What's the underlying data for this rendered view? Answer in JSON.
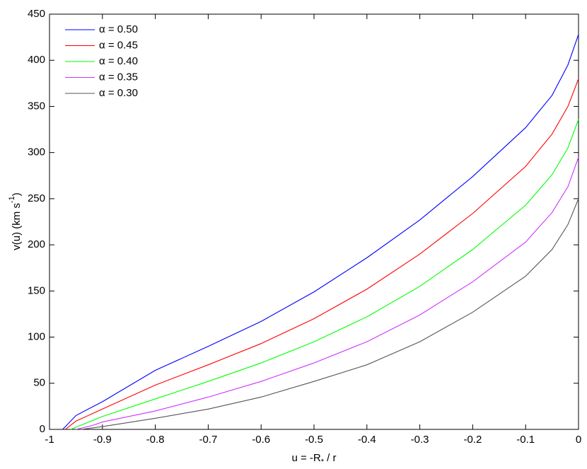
{
  "chart_data": {
    "type": "line",
    "xlabel_parts": [
      "u = -R",
      "*",
      " / r"
    ],
    "ylabel_parts": [
      "v(u) (km s",
      "-1",
      ")"
    ],
    "xlim": [
      -1,
      0
    ],
    "xticks": [
      -1,
      -0.9,
      -0.8,
      -0.7,
      -0.6,
      -0.5,
      -0.4,
      -0.3,
      -0.2,
      -0.1,
      0
    ],
    "ylim": [
      0,
      450
    ],
    "yticks": [
      0,
      50,
      100,
      150,
      200,
      250,
      300,
      350,
      400,
      450
    ],
    "grid": false,
    "legend": "upper-left",
    "series": [
      {
        "name": "α = 0.50",
        "color": "#0000ff",
        "x": [
          -0.975,
          -0.95,
          -0.9,
          -0.8,
          -0.7,
          -0.6,
          -0.5,
          -0.4,
          -0.3,
          -0.2,
          -0.1,
          -0.05,
          -0.02,
          0
        ],
        "values": [
          0,
          15,
          30,
          64,
          90,
          117,
          149,
          186,
          227,
          274,
          327,
          362,
          395,
          428
        ]
      },
      {
        "name": "α = 0.45",
        "color": "#ff0000",
        "x": [
          -0.97,
          -0.95,
          -0.9,
          -0.8,
          -0.7,
          -0.6,
          -0.5,
          -0.4,
          -0.3,
          -0.2,
          -0.1,
          -0.05,
          -0.02,
          0
        ],
        "values": [
          0,
          9,
          22,
          48,
          70,
          93,
          120,
          152,
          190,
          234,
          285,
          320,
          350,
          380
        ]
      },
      {
        "name": "α = 0.40",
        "color": "#00ff00",
        "x": [
          -0.96,
          -0.93,
          -0.9,
          -0.8,
          -0.7,
          -0.6,
          -0.5,
          -0.4,
          -0.3,
          -0.2,
          -0.1,
          -0.05,
          -0.02,
          0
        ],
        "values": [
          0,
          7,
          14,
          33,
          52,
          72,
          95,
          122,
          155,
          195,
          243,
          276,
          305,
          336
        ]
      },
      {
        "name": "α = 0.35",
        "color": "#cc33ff",
        "x": [
          -0.95,
          -0.92,
          -0.9,
          -0.8,
          -0.7,
          -0.6,
          -0.5,
          -0.4,
          -0.3,
          -0.2,
          -0.1,
          -0.05,
          -0.02,
          0
        ],
        "values": [
          0,
          4,
          8,
          20,
          35,
          52,
          72,
          95,
          124,
          160,
          203,
          235,
          263,
          295
        ]
      },
      {
        "name": "α = 0.30",
        "color": "#555555",
        "x": [
          -0.94,
          -0.92,
          -0.9,
          -0.8,
          -0.7,
          -0.6,
          -0.5,
          -0.4,
          -0.3,
          -0.2,
          -0.1,
          -0.05,
          -0.02,
          0
        ],
        "values": [
          0,
          1.5,
          3,
          12,
          22,
          35,
          52,
          70,
          95,
          127,
          166,
          195,
          222,
          250
        ]
      }
    ]
  }
}
